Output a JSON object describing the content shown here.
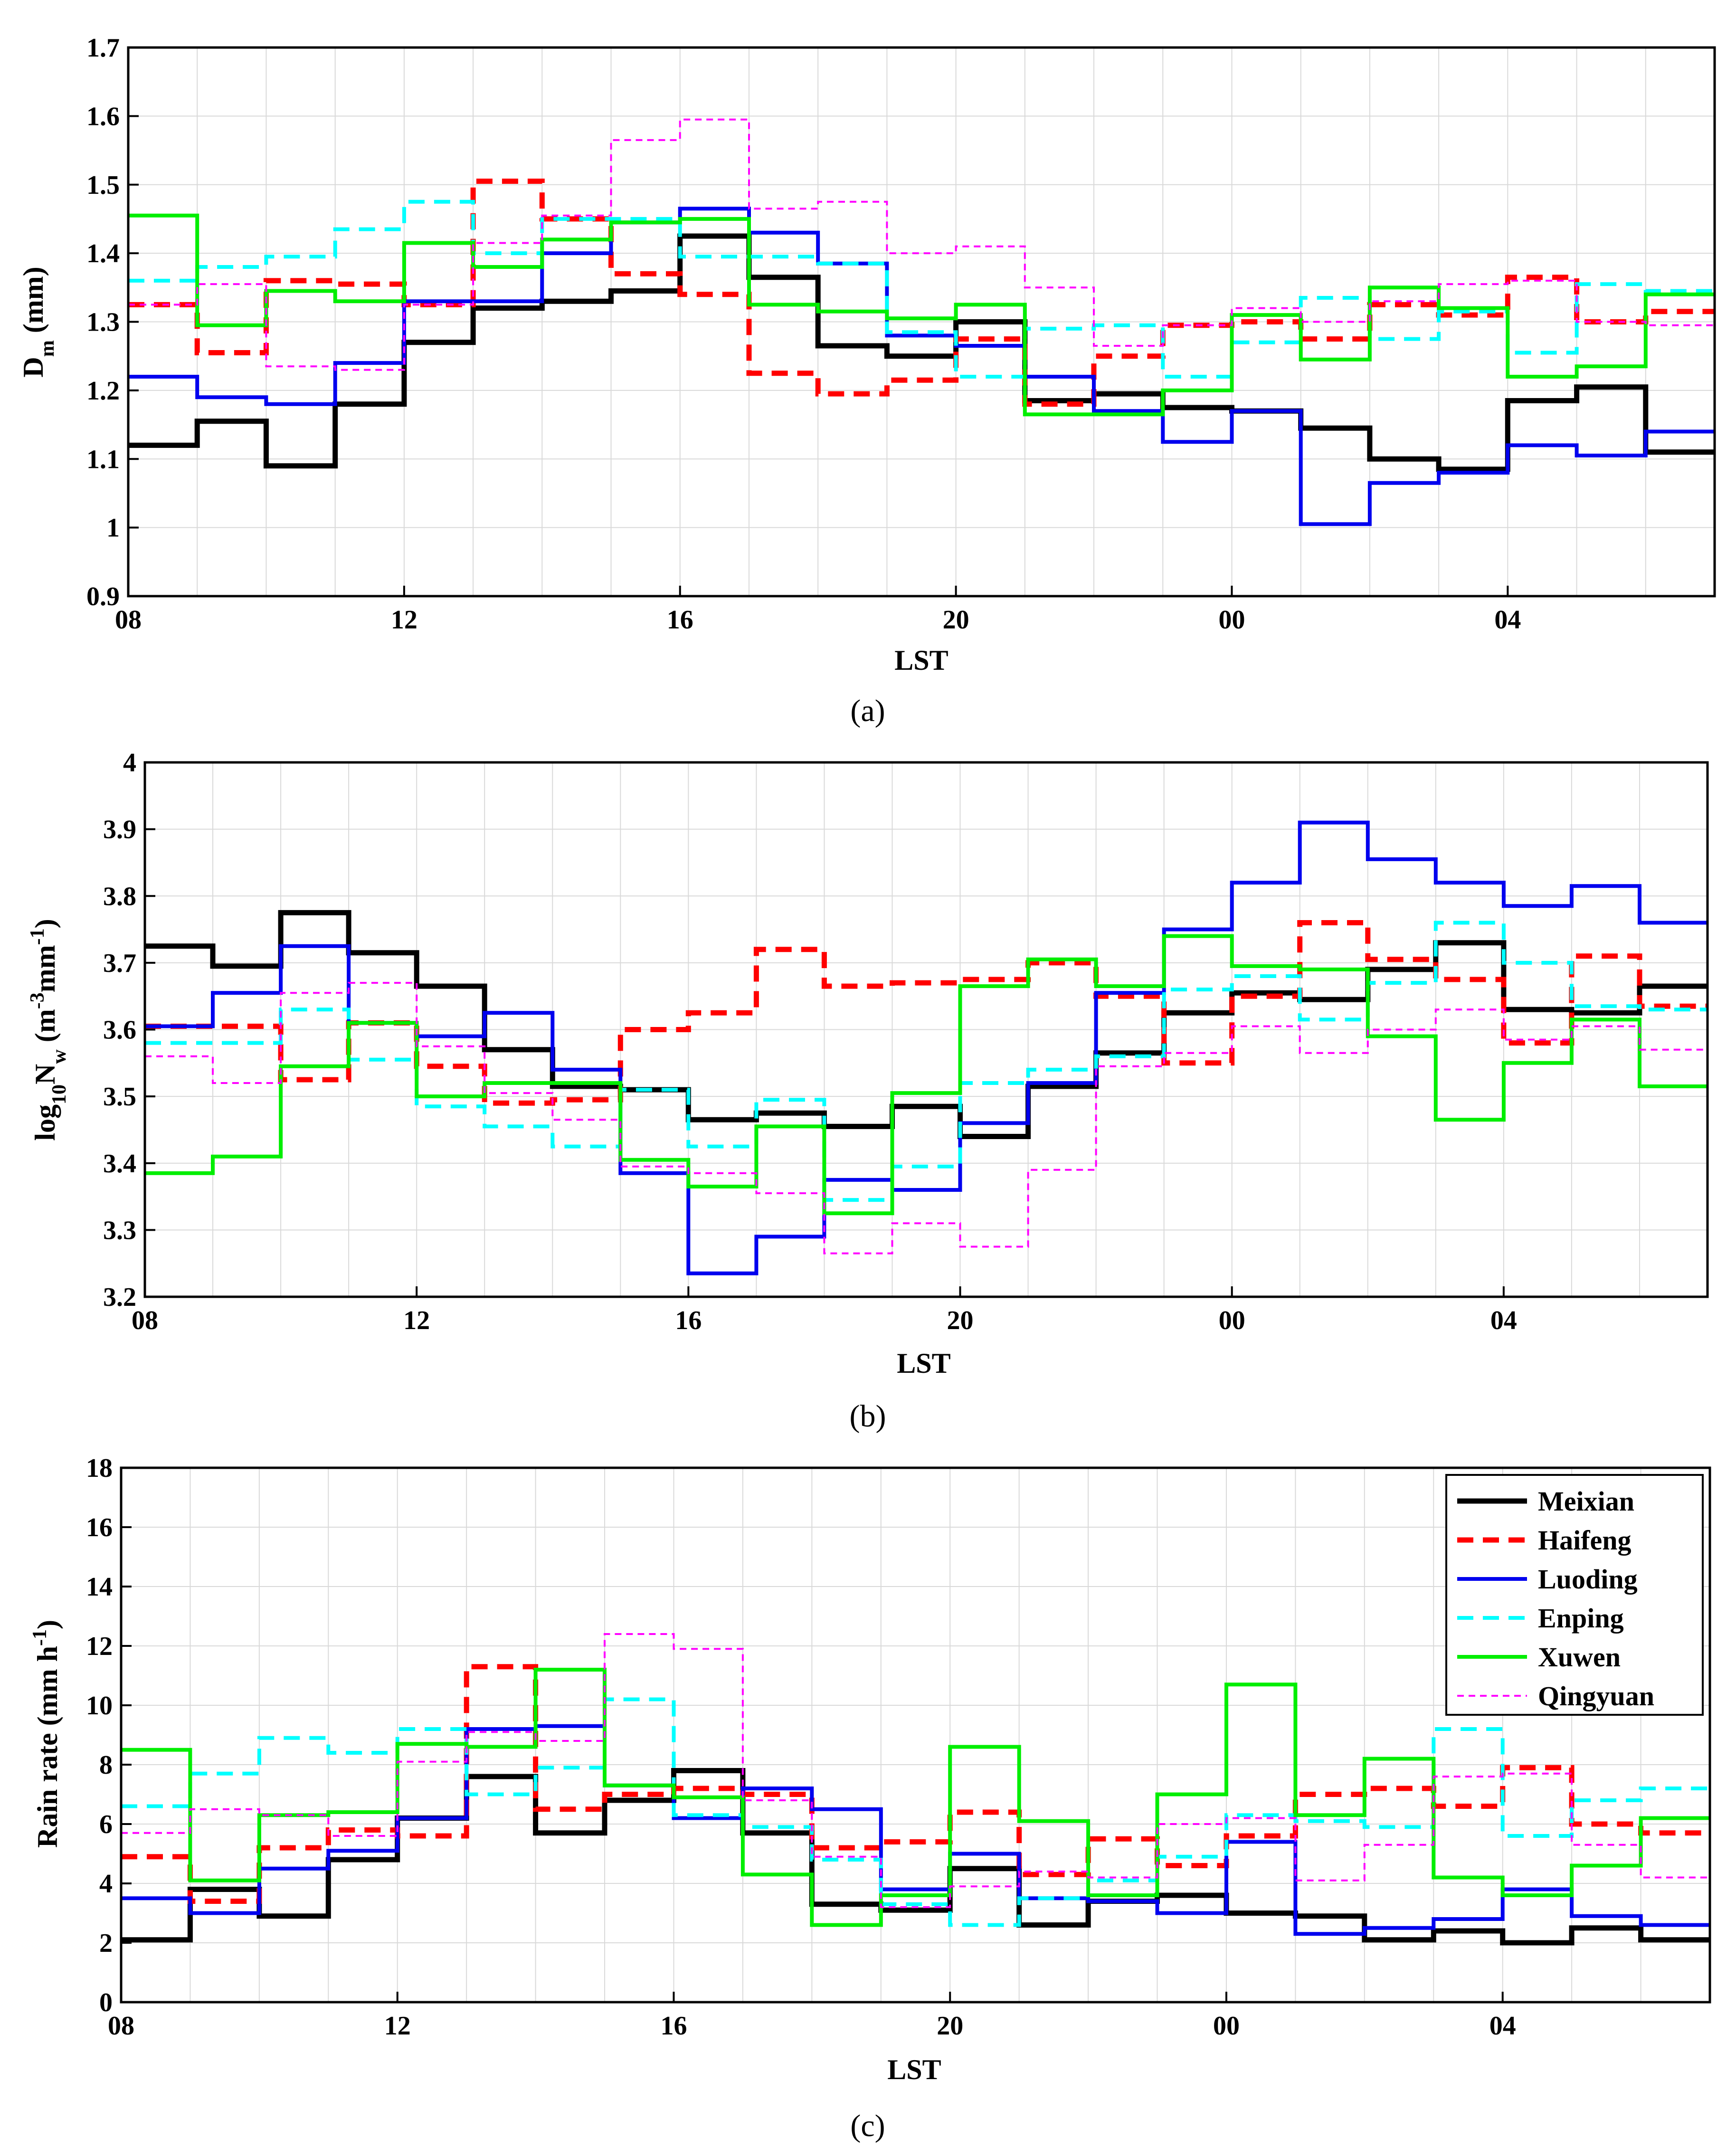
{
  "chart_data": [
    {
      "type": "line",
      "caption": "(a)",
      "xlabel": "LST",
      "ylabel": "D_m (mm)",
      "ylabel_main": "D",
      "ylabel_sub": "m",
      "ylabel_unit": " (mm)",
      "xlim": [
        0,
        23
      ],
      "ylim": [
        0.9,
        1.7
      ],
      "yticks": [
        0.9,
        1,
        1.1,
        1.2,
        1.3,
        1.4,
        1.5,
        1.6,
        1.7
      ],
      "ytick_labels": [
        "0.9",
        "1",
        "1.1",
        "1.2",
        "1.3",
        "1.4",
        "1.5",
        "1.6",
        "1.7"
      ],
      "xticks": [
        0,
        4,
        8,
        12,
        16,
        20
      ],
      "xtick_labels": [
        "08",
        "12",
        "16",
        "20",
        "00",
        "04"
      ],
      "series": [
        {
          "name": "Meixian",
          "values": [
            1.12,
            1.155,
            1.09,
            1.18,
            1.27,
            1.32,
            1.33,
            1.345,
            1.425,
            1.365,
            1.265,
            1.25,
            1.3,
            1.185,
            1.195,
            1.175,
            1.17,
            1.145,
            1.1,
            1.085,
            1.185,
            1.205,
            1.11
          ]
        },
        {
          "name": "Haifeng",
          "values": [
            1.325,
            1.255,
            1.36,
            1.355,
            1.325,
            1.505,
            1.45,
            1.37,
            1.34,
            1.225,
            1.195,
            1.215,
            1.275,
            1.18,
            1.25,
            1.295,
            1.3,
            1.275,
            1.325,
            1.31,
            1.365,
            1.3,
            1.315
          ]
        },
        {
          "name": "Luoding",
          "values": [
            1.22,
            1.19,
            1.18,
            1.24,
            1.33,
            1.33,
            1.4,
            1.445,
            1.465,
            1.43,
            1.385,
            1.28,
            1.265,
            1.22,
            1.17,
            1.125,
            1.17,
            1.005,
            1.065,
            1.08,
            1.12,
            1.105,
            1.14
          ]
        },
        {
          "name": "Enping",
          "values": [
            1.36,
            1.38,
            1.395,
            1.435,
            1.475,
            1.4,
            1.45,
            1.45,
            1.395,
            1.395,
            1.385,
            1.285,
            1.22,
            1.29,
            1.295,
            1.22,
            1.27,
            1.335,
            1.275,
            1.315,
            1.255,
            1.355,
            1.345
          ]
        },
        {
          "name": "Xuwen",
          "values": [
            1.455,
            1.295,
            1.345,
            1.33,
            1.415,
            1.38,
            1.42,
            1.445,
            1.45,
            1.325,
            1.315,
            1.305,
            1.325,
            1.165,
            1.165,
            1.2,
            1.31,
            1.245,
            1.35,
            1.32,
            1.22,
            1.235,
            1.34
          ]
        },
        {
          "name": "Qingyuan",
          "values": [
            1.325,
            1.355,
            1.235,
            1.23,
            1.325,
            1.415,
            1.455,
            1.565,
            1.595,
            1.465,
            1.475,
            1.4,
            1.41,
            1.35,
            1.265,
            1.295,
            1.32,
            1.3,
            1.33,
            1.355,
            1.36,
            1.3,
            1.295
          ]
        }
      ]
    },
    {
      "type": "line",
      "caption": "(b)",
      "xlabel": "LST",
      "ylabel": "log10Nw (m-3mm-1)",
      "ylabel_parts": [
        "log",
        "10",
        "N",
        "w",
        " (m",
        "-3",
        "mm",
        "-1",
        ")"
      ],
      "xlim": [
        0,
        23
      ],
      "ylim": [
        3.2,
        4.0
      ],
      "yticks": [
        3.2,
        3.3,
        3.4,
        3.5,
        3.6,
        3.7,
        3.8,
        3.9,
        4.0
      ],
      "ytick_labels": [
        "3.2",
        "3.3",
        "3.4",
        "3.5",
        "3.6",
        "3.7",
        "3.8",
        "3.9",
        "4"
      ],
      "xticks": [
        0,
        4,
        8,
        12,
        16,
        20
      ],
      "xtick_labels": [
        "08",
        "12",
        "16",
        "20",
        "00",
        "04"
      ],
      "series": [
        {
          "name": "Meixian",
          "values": [
            3.725,
            3.695,
            3.775,
            3.715,
            3.665,
            3.57,
            3.515,
            3.51,
            3.465,
            3.475,
            3.455,
            3.485,
            3.44,
            3.515,
            3.565,
            3.625,
            3.655,
            3.645,
            3.69,
            3.73,
            3.63,
            3.625,
            3.665
          ]
        },
        {
          "name": "Haifeng",
          "values": [
            3.605,
            3.605,
            3.525,
            3.61,
            3.545,
            3.49,
            3.495,
            3.6,
            3.625,
            3.72,
            3.665,
            3.67,
            3.675,
            3.7,
            3.65,
            3.55,
            3.65,
            3.76,
            3.705,
            3.675,
            3.58,
            3.71,
            3.635
          ]
        },
        {
          "name": "Luoding",
          "values": [
            3.605,
            3.655,
            3.725,
            3.61,
            3.59,
            3.625,
            3.54,
            3.385,
            3.235,
            3.29,
            3.375,
            3.36,
            3.46,
            3.52,
            3.655,
            3.75,
            3.82,
            3.91,
            3.855,
            3.82,
            3.785,
            3.815,
            3.76
          ]
        },
        {
          "name": "Enping",
          "values": [
            3.58,
            3.58,
            3.63,
            3.555,
            3.485,
            3.455,
            3.425,
            3.51,
            3.425,
            3.495,
            3.345,
            3.395,
            3.52,
            3.54,
            3.56,
            3.66,
            3.68,
            3.615,
            3.67,
            3.76,
            3.7,
            3.635,
            3.63
          ]
        },
        {
          "name": "Xuwen",
          "values": [
            3.385,
            3.41,
            3.545,
            3.61,
            3.5,
            3.52,
            3.52,
            3.405,
            3.365,
            3.455,
            3.325,
            3.505,
            3.665,
            3.705,
            3.665,
            3.74,
            3.695,
            3.69,
            3.59,
            3.465,
            3.55,
            3.615,
            3.515
          ]
        },
        {
          "name": "Qingyuan",
          "values": [
            3.56,
            3.52,
            3.655,
            3.67,
            3.575,
            3.505,
            3.465,
            3.395,
            3.385,
            3.355,
            3.265,
            3.31,
            3.275,
            3.39,
            3.545,
            3.565,
            3.605,
            3.565,
            3.6,
            3.63,
            3.585,
            3.605,
            3.57
          ]
        }
      ]
    },
    {
      "type": "line",
      "caption": "(c)",
      "xlabel": "LST",
      "ylabel": "Rain rate (mm h-1)",
      "ylabel_main": "Rain rate (mm h",
      "ylabel_sup": "-1",
      "ylabel_close": ")",
      "xlim": [
        0,
        23
      ],
      "ylim": [
        0,
        18
      ],
      "yticks": [
        0,
        2,
        4,
        6,
        8,
        10,
        12,
        14,
        16,
        18
      ],
      "ytick_labels": [
        "0",
        "2",
        "4",
        "6",
        "8",
        "10",
        "12",
        "14",
        "16",
        "18"
      ],
      "xticks": [
        0,
        4,
        8,
        12,
        16,
        20
      ],
      "xtick_labels": [
        "08",
        "12",
        "16",
        "20",
        "00",
        "04"
      ],
      "legend_position": "top-right",
      "series": [
        {
          "name": "Meixian",
          "values": [
            2.1,
            3.8,
            2.9,
            4.8,
            6.2,
            7.6,
            5.7,
            6.8,
            7.8,
            5.7,
            3.3,
            3.1,
            4.5,
            2.6,
            3.4,
            3.6,
            3.0,
            2.9,
            2.1,
            2.4,
            2.0,
            2.5,
            2.1
          ]
        },
        {
          "name": "Haifeng",
          "values": [
            4.9,
            3.4,
            5.2,
            5.8,
            5.6,
            11.3,
            6.5,
            7.0,
            7.2,
            7.0,
            5.2,
            5.4,
            6.4,
            4.3,
            5.5,
            4.6,
            5.6,
            7.0,
            7.2,
            6.6,
            7.9,
            6.0,
            5.7
          ]
        },
        {
          "name": "Luoding",
          "values": [
            3.5,
            3.0,
            4.5,
            5.1,
            6.2,
            9.2,
            9.3,
            7.3,
            6.2,
            7.2,
            6.5,
            3.8,
            5.0,
            3.5,
            3.4,
            3.0,
            5.4,
            2.3,
            2.5,
            2.8,
            3.8,
            2.9,
            2.6
          ]
        },
        {
          "name": "Enping",
          "values": [
            6.6,
            7.7,
            8.9,
            8.4,
            9.2,
            7.0,
            7.9,
            10.2,
            6.3,
            5.9,
            4.8,
            3.3,
            2.6,
            3.5,
            4.1,
            4.9,
            6.3,
            6.1,
            5.9,
            9.2,
            5.6,
            6.8,
            7.2
          ]
        },
        {
          "name": "Xuwen",
          "values": [
            8.5,
            4.1,
            6.3,
            6.4,
            8.7,
            8.6,
            11.2,
            7.3,
            6.9,
            4.3,
            2.6,
            3.6,
            8.6,
            6.1,
            3.6,
            7.0,
            10.7,
            6.3,
            8.2,
            4.2,
            3.6,
            4.6,
            6.2
          ]
        },
        {
          "name": "Qingyuan",
          "values": [
            5.7,
            6.5,
            6.3,
            5.6,
            8.1,
            9.1,
            8.8,
            12.4,
            11.9,
            6.8,
            4.9,
            3.2,
            3.9,
            4.4,
            4.2,
            6.0,
            6.2,
            4.1,
            5.3,
            7.6,
            7.7,
            5.3,
            4.2
          ]
        }
      ]
    }
  ],
  "legend": {
    "items": [
      {
        "name": "Meixian",
        "color": "#000000",
        "dash": "solid",
        "width": "thick"
      },
      {
        "name": "Haifeng",
        "color": "#ff0000",
        "dash": "dashed",
        "width": "thick"
      },
      {
        "name": "Luoding",
        "color": "#0000ee",
        "dash": "solid",
        "width": "medium"
      },
      {
        "name": "Enping",
        "color": "#00ffff",
        "dash": "dashed",
        "width": "medium"
      },
      {
        "name": "Xuwen",
        "color": "#00ee00",
        "dash": "solid",
        "width": "medium"
      },
      {
        "name": "Qingyuan",
        "color": "#ff00ff",
        "dash": "dotted",
        "width": "thin"
      }
    ]
  }
}
